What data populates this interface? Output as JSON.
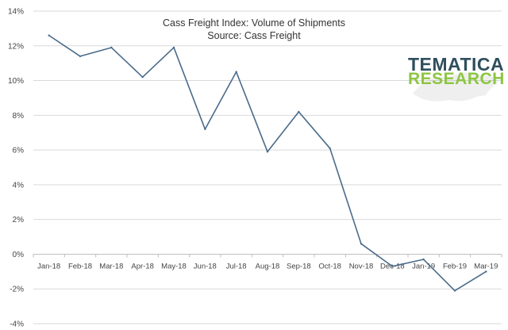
{
  "chart_data": {
    "type": "line",
    "title": "Cass Freight Index: Volume of Shipments",
    "subtitle": "Source: Cass Freight",
    "xlabel": "",
    "ylabel": "",
    "categories": [
      "Jan-18",
      "Feb-18",
      "Mar-18",
      "Apr-18",
      "May-18",
      "Jun-18",
      "Jul-18",
      "Aug-18",
      "Sep-18",
      "Oct-18",
      "Nov-18",
      "Dec-18",
      "Jan-19",
      "Feb-19",
      "Mar-19"
    ],
    "series": [
      {
        "name": "Volume of Shipments",
        "values": [
          12.6,
          11.4,
          11.9,
          10.2,
          11.9,
          7.2,
          10.5,
          5.9,
          8.2,
          6.1,
          0.6,
          -0.7,
          -0.3,
          -2.1,
          -1.0
        ]
      }
    ],
    "ylim": [
      -4,
      14
    ],
    "yticks": [
      -4,
      -2,
      0,
      2,
      4,
      6,
      8,
      10,
      12,
      14
    ],
    "ytick_labels": [
      "-4%",
      "-2%",
      "0%",
      "2%",
      "4%",
      "6%",
      "8%",
      "10%",
      "12%",
      "14%"
    ],
    "grid": true,
    "legend": "none",
    "line_color": "#4a6b8a"
  },
  "watermark": {
    "line1": "TEMATICA",
    "line2": "RESEARCH",
    "color1": "#2f4f5e",
    "color2": "#8cc641"
  }
}
